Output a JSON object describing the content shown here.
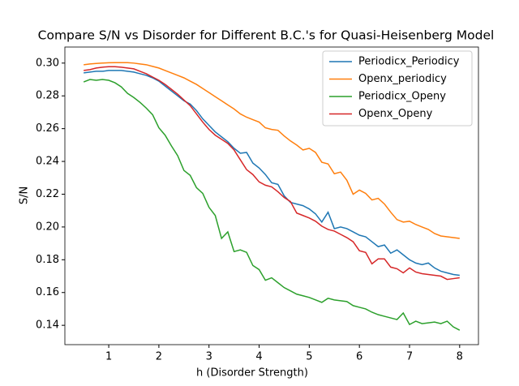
{
  "chart_data": {
    "type": "line",
    "title": "Compare S/N vs Disorder for Different B.C.'s for Quasi-Heisenberg Model",
    "x_label": "h (Disorder Strength)",
    "y_label": "S/N",
    "x": [
      0.5,
      0.625,
      0.75,
      0.875,
      1,
      1.125,
      1.25,
      1.375,
      1.5,
      1.625,
      1.75,
      1.875,
      2,
      2.125,
      2.25,
      2.375,
      2.5,
      2.625,
      2.75,
      2.875,
      3,
      3.125,
      3.25,
      3.375,
      3.5,
      3.625,
      3.75,
      3.875,
      4,
      4.125,
      4.25,
      4.375,
      4.5,
      4.625,
      4.75,
      4.875,
      5,
      5.125,
      5.25,
      5.375,
      5.5,
      5.625,
      5.75,
      5.875,
      6,
      6.125,
      6.25,
      6.375,
      6.5,
      6.625,
      6.75,
      6.875,
      7,
      7.125,
      7.25,
      7.375,
      7.5,
      7.625,
      7.75,
      7.875,
      8
    ],
    "series": [
      {
        "name": "Periodicx_Periodicy",
        "color": "#1f77b4",
        "values": [
          0.294,
          0.2945,
          0.295,
          0.295,
          0.2955,
          0.2955,
          0.2955,
          0.295,
          0.2945,
          0.2935,
          0.2925,
          0.291,
          0.289,
          0.286,
          0.283,
          0.28,
          0.277,
          0.275,
          0.271,
          0.266,
          0.262,
          0.258,
          0.255,
          0.252,
          0.248,
          0.245,
          0.2455,
          0.239,
          0.236,
          0.232,
          0.227,
          0.226,
          0.219,
          0.215,
          0.214,
          0.213,
          0.211,
          0.208,
          0.203,
          0.209,
          0.199,
          0.2,
          0.199,
          0.197,
          0.195,
          0.194,
          0.191,
          0.188,
          0.189,
          0.184,
          0.186,
          0.183,
          0.18,
          0.178,
          0.177,
          0.178,
          0.175,
          0.173,
          0.172,
          0.171,
          0.1705
        ]
      },
      {
        "name": "Openx_periodicy",
        "color": "#ff7f0e",
        "values": [
          0.299,
          0.2995,
          0.2998,
          0.3,
          0.3002,
          0.3003,
          0.3003,
          0.3003,
          0.3,
          0.2995,
          0.299,
          0.298,
          0.297,
          0.2955,
          0.294,
          0.2925,
          0.291,
          0.289,
          0.287,
          0.2845,
          0.282,
          0.2795,
          0.277,
          0.2745,
          0.272,
          0.269,
          0.267,
          0.2655,
          0.264,
          0.2605,
          0.2595,
          0.259,
          0.2555,
          0.2525,
          0.25,
          0.247,
          0.248,
          0.2455,
          0.2395,
          0.2385,
          0.2325,
          0.2335,
          0.2285,
          0.22,
          0.2225,
          0.2205,
          0.2165,
          0.2175,
          0.214,
          0.209,
          0.2045,
          0.203,
          0.2035,
          0.2015,
          0.2,
          0.1985,
          0.196,
          0.1945,
          0.194,
          0.1935,
          0.193
        ]
      },
      {
        "name": "Periodicx_Openy",
        "color": "#2ca02c",
        "values": [
          0.2885,
          0.29,
          0.2895,
          0.29,
          0.2895,
          0.288,
          0.2855,
          0.2815,
          0.279,
          0.276,
          0.2725,
          0.2685,
          0.2605,
          0.256,
          0.2495,
          0.2435,
          0.2345,
          0.2315,
          0.224,
          0.2205,
          0.212,
          0.207,
          0.193,
          0.197,
          0.185,
          0.186,
          0.1845,
          0.1765,
          0.174,
          0.1675,
          0.169,
          0.166,
          0.163,
          0.161,
          0.159,
          0.158,
          0.157,
          0.1555,
          0.154,
          0.1565,
          0.1555,
          0.155,
          0.1545,
          0.152,
          0.151,
          0.15,
          0.148,
          0.1465,
          0.1455,
          0.1445,
          0.1435,
          0.1475,
          0.1405,
          0.1425,
          0.141,
          0.1415,
          0.142,
          0.141,
          0.1425,
          0.139,
          0.137
        ]
      },
      {
        "name": "Openx_Openy",
        "color": "#d62728",
        "values": [
          0.2955,
          0.296,
          0.297,
          0.2975,
          0.2978,
          0.2978,
          0.2975,
          0.297,
          0.2965,
          0.295,
          0.2935,
          0.2915,
          0.2895,
          0.287,
          0.284,
          0.281,
          0.2775,
          0.274,
          0.269,
          0.264,
          0.2595,
          0.256,
          0.2535,
          0.251,
          0.247,
          0.241,
          0.235,
          0.232,
          0.2275,
          0.2255,
          0.2245,
          0.2215,
          0.218,
          0.2155,
          0.2085,
          0.207,
          0.2055,
          0.2035,
          0.2005,
          0.1985,
          0.1975,
          0.1955,
          0.1935,
          0.191,
          0.1855,
          0.1845,
          0.1775,
          0.1805,
          0.1805,
          0.1755,
          0.1745,
          0.172,
          0.175,
          0.1725,
          0.1715,
          0.171,
          0.1705,
          0.17,
          0.168,
          0.1685,
          0.169
        ]
      }
    ],
    "xlim": [
      0.125,
      8.375
    ],
    "ylim": [
      0.1282,
      0.3098
    ],
    "xticks": [
      1,
      2,
      3,
      4,
      5,
      6,
      7,
      8
    ],
    "yticks": [
      0.14,
      0.16,
      0.18,
      {
        "value": 0.2,
        "label": "0.20"
      },
      0.22,
      0.24,
      0.26,
      0.28,
      {
        "value": 0.3,
        "label": "0.30"
      }
    ],
    "legend": "upper right"
  }
}
